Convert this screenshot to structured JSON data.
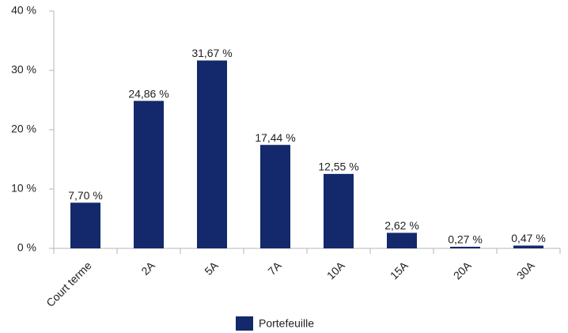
{
  "chart_data": {
    "type": "bar",
    "categories": [
      "Court terme",
      "2A",
      "5A",
      "7A",
      "10A",
      "15A",
      "20A",
      "30A"
    ],
    "series": [
      {
        "name": "Portefeuille",
        "color": "#13296b",
        "values": [
          7.7,
          24.86,
          31.67,
          17.44,
          12.55,
          2.62,
          0.27,
          0.47
        ],
        "value_labels": [
          "7,70 %",
          "24,86 %",
          "31,67 %",
          "17,44 %",
          "12,55 %",
          "2,62 %",
          "0,27 %",
          "0,47 %"
        ]
      }
    ],
    "ylim": [
      0,
      40
    ],
    "yticks": [
      {
        "value": 0,
        "label": "0 %"
      },
      {
        "value": 10,
        "label": "10 %"
      },
      {
        "value": 20,
        "label": "20 %"
      },
      {
        "value": 30,
        "label": "30 %"
      },
      {
        "value": 40,
        "label": "40 %"
      }
    ],
    "grid": false,
    "legend": "bottom"
  }
}
